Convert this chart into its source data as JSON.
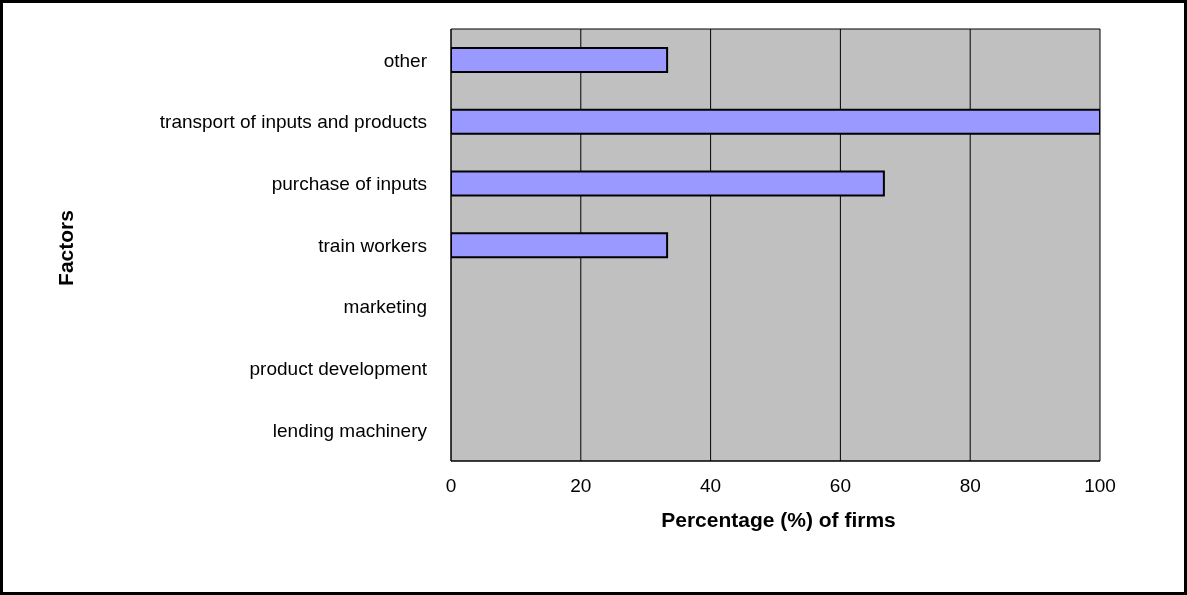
{
  "chart_data": {
    "type": "bar",
    "orientation": "horizontal",
    "xlabel": "Percentage (%) of firms",
    "ylabel": "Factors",
    "categories": [
      "other",
      "transport of inputs and products",
      "purchase of inputs",
      "train workers",
      "marketing",
      "product development",
      "lending machinery"
    ],
    "values": [
      33.3,
      100,
      66.7,
      33.3,
      0,
      0,
      0
    ],
    "color": "#9999ff",
    "xlim": [
      0,
      100
    ],
    "xticks": [
      0,
      20,
      40,
      60,
      80,
      100
    ],
    "grid": "x",
    "legend": false
  }
}
